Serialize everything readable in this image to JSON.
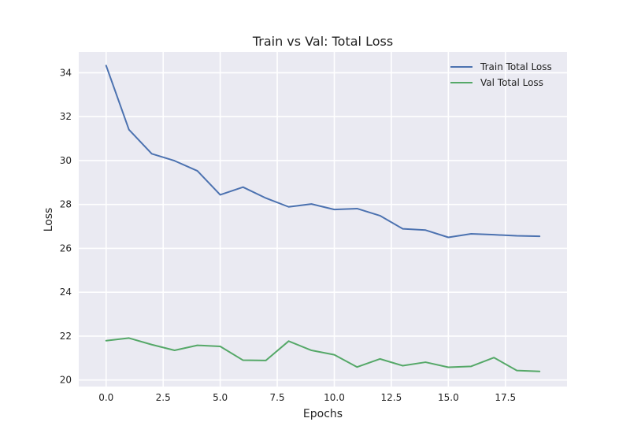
{
  "chart_data": {
    "type": "line",
    "title": "Train vs Val: Total Loss",
    "xlabel": "Epochs",
    "ylabel": "Loss",
    "xlim": [
      -1.2,
      20.2
    ],
    "ylim": [
      19.7,
      34.95
    ],
    "xticks": [
      0.0,
      2.5,
      5.0,
      7.5,
      10.0,
      12.5,
      15.0,
      17.5
    ],
    "xtick_labels": [
      "0.0",
      "2.5",
      "5.0",
      "7.5",
      "10.0",
      "12.5",
      "15.0",
      "17.5"
    ],
    "yticks": [
      20,
      22,
      24,
      26,
      28,
      30,
      32,
      34
    ],
    "ytick_labels": [
      "20",
      "22",
      "24",
      "26",
      "28",
      "30",
      "32",
      "34"
    ],
    "grid": true,
    "legend_position": "top-right",
    "x": [
      0,
      1,
      2,
      3,
      4,
      5,
      6,
      7,
      8,
      9,
      10,
      11,
      12,
      13,
      14,
      15,
      16,
      17,
      18,
      19
    ],
    "series": [
      {
        "name": "Train Total Loss",
        "color": "#4c72b0",
        "values": [
          34.33,
          31.41,
          30.31,
          29.99,
          29.53,
          28.44,
          28.79,
          28.29,
          27.89,
          28.02,
          27.77,
          27.81,
          27.49,
          26.89,
          26.83,
          26.5,
          26.66,
          26.62,
          26.57,
          26.55
        ]
      },
      {
        "name": "Val Total Loss",
        "color": "#55a868",
        "values": [
          21.79,
          21.91,
          21.61,
          21.35,
          21.58,
          21.53,
          20.9,
          20.89,
          21.77,
          21.35,
          21.15,
          20.59,
          20.96,
          20.65,
          20.81,
          20.58,
          20.62,
          21.02,
          20.43,
          20.39
        ]
      }
    ]
  }
}
